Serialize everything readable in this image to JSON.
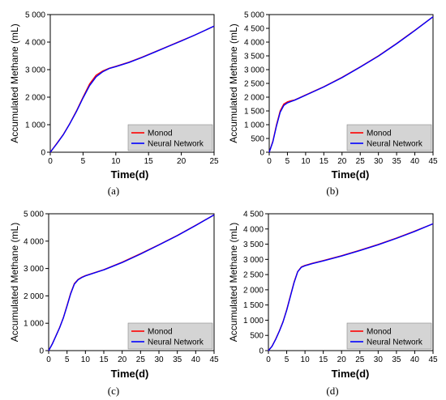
{
  "figure": {
    "panels": [
      "a",
      "b",
      "c",
      "d"
    ]
  },
  "colors": {
    "monod": "#ff0000",
    "neural_network": "#0000ff",
    "legend_background": "#d4d4d4",
    "axis": "#000000"
  },
  "chart_data": [
    {
      "type": "line",
      "panel": "a",
      "caption": "(a)",
      "xlabel": "Time(d)",
      "ylabel": "Accumulated Methane (mL)",
      "xlim": [
        0,
        25
      ],
      "ylim": [
        0,
        5000
      ],
      "x_ticks": [
        "0",
        "5",
        "10",
        "15",
        "20",
        "25"
      ],
      "y_ticks": [
        "0",
        "1 000",
        "2 000",
        "3 000",
        "4 000",
        "5 000"
      ],
      "legend": [
        "Monod",
        "Neural Network"
      ],
      "legend_position": "bottom-right",
      "series": [
        {
          "name": "Monod",
          "color": "#ff0000",
          "x": [
            0,
            1,
            2,
            3,
            4,
            5,
            6,
            7,
            8,
            9,
            10,
            12,
            14,
            16,
            18,
            20,
            22,
            25
          ],
          "y": [
            0,
            320,
            650,
            1050,
            1500,
            2000,
            2480,
            2800,
            2950,
            3050,
            3120,
            3270,
            3450,
            3650,
            3850,
            4050,
            4250,
            4580
          ]
        },
        {
          "name": "Neural Network",
          "color": "#0000ff",
          "x": [
            0,
            1,
            2,
            3,
            4,
            5,
            6,
            7,
            8,
            9,
            10,
            12,
            14,
            16,
            18,
            20,
            22,
            25
          ],
          "y": [
            0,
            310,
            640,
            1040,
            1480,
            1970,
            2420,
            2740,
            2920,
            3040,
            3110,
            3260,
            3440,
            3640,
            3840,
            4040,
            4250,
            4580
          ]
        }
      ]
    },
    {
      "type": "line",
      "panel": "b",
      "caption": "(b)",
      "xlabel": "Time(d)",
      "ylabel": "Accumulated Methane (mL)",
      "xlim": [
        0,
        45
      ],
      "ylim": [
        0,
        5000
      ],
      "x_ticks": [
        "0",
        "5",
        "10",
        "15",
        "20",
        "25",
        "30",
        "35",
        "40",
        "45"
      ],
      "y_ticks": [
        "0",
        "500",
        "1 000",
        "1 500",
        "2 000",
        "2 500",
        "3 000",
        "3 500",
        "4 000",
        "4 500",
        "5 000"
      ],
      "legend": [
        "Monod",
        "Neural Network"
      ],
      "legend_position": "bottom-right",
      "series": [
        {
          "name": "Monod",
          "color": "#ff0000",
          "x": [
            0,
            1,
            2,
            3,
            4,
            5,
            6,
            7,
            8,
            10,
            15,
            20,
            25,
            30,
            35,
            40,
            45
          ],
          "y": [
            0,
            400,
            1000,
            1500,
            1750,
            1830,
            1870,
            1900,
            1960,
            2080,
            2380,
            2720,
            3100,
            3500,
            3950,
            4430,
            4920
          ]
        },
        {
          "name": "Neural Network",
          "color": "#0000ff",
          "x": [
            0,
            1,
            2,
            3,
            4,
            5,
            6,
            7,
            8,
            10,
            15,
            20,
            25,
            30,
            35,
            40,
            45
          ],
          "y": [
            0,
            380,
            960,
            1450,
            1700,
            1790,
            1840,
            1890,
            1950,
            2070,
            2370,
            2710,
            3090,
            3490,
            3940,
            4420,
            4920
          ]
        }
      ]
    },
    {
      "type": "line",
      "panel": "c",
      "caption": "(c)",
      "xlabel": "Time(d)",
      "ylabel": "Accumulated Methane (mL)",
      "xlim": [
        0,
        45
      ],
      "ylim": [
        0,
        5000
      ],
      "x_ticks": [
        "0",
        "5",
        "10",
        "15",
        "20",
        "25",
        "30",
        "35",
        "40",
        "45"
      ],
      "y_ticks": [
        "0",
        "1 000",
        "2 000",
        "3 000",
        "4 000",
        "5 000"
      ],
      "legend": [
        "Monod",
        "Neural Network"
      ],
      "legend_position": "bottom-right",
      "series": [
        {
          "name": "Monod",
          "color": "#ff0000",
          "x": [
            0,
            1,
            2,
            3,
            4,
            5,
            6,
            7,
            8,
            9,
            10,
            15,
            20,
            25,
            30,
            35,
            40,
            45
          ],
          "y": [
            0,
            250,
            550,
            850,
            1200,
            1650,
            2100,
            2450,
            2600,
            2680,
            2740,
            2960,
            3230,
            3540,
            3870,
            4210,
            4580,
            4960
          ]
        },
        {
          "name": "Neural Network",
          "color": "#0000ff",
          "x": [
            0,
            1,
            2,
            3,
            4,
            5,
            6,
            7,
            8,
            9,
            10,
            15,
            20,
            25,
            30,
            35,
            40,
            45
          ],
          "y": [
            0,
            240,
            540,
            840,
            1190,
            1630,
            2080,
            2430,
            2590,
            2670,
            2730,
            2950,
            3220,
            3530,
            3860,
            4200,
            4570,
            4960
          ]
        }
      ]
    },
    {
      "type": "line",
      "panel": "d",
      "caption": "(d)",
      "xlabel": "Time(d)",
      "ylabel": "Accumulated Methane (mL)",
      "xlim": [
        0,
        45
      ],
      "ylim": [
        0,
        4500
      ],
      "x_ticks": [
        "0",
        "5",
        "10",
        "15",
        "20",
        "25",
        "30",
        "35",
        "40",
        "45"
      ],
      "y_ticks": [
        "0",
        "500",
        "1 000",
        "1 500",
        "2 000",
        "2 500",
        "3 000",
        "3 500",
        "4 000",
        "4 500"
      ],
      "legend": [
        "Monod",
        "Neural Network"
      ],
      "legend_position": "bottom-right",
      "series": [
        {
          "name": "Monod",
          "color": "#ff0000",
          "x": [
            0,
            1,
            2,
            3,
            4,
            5,
            6,
            7,
            8,
            9,
            10,
            12,
            15,
            20,
            25,
            30,
            35,
            40,
            45
          ],
          "y": [
            0,
            150,
            380,
            650,
            950,
            1350,
            1800,
            2250,
            2600,
            2750,
            2800,
            2870,
            2960,
            3120,
            3300,
            3490,
            3700,
            3930,
            4170
          ]
        },
        {
          "name": "Neural Network",
          "color": "#0000ff",
          "x": [
            0,
            1,
            2,
            3,
            4,
            5,
            6,
            7,
            8,
            9,
            10,
            12,
            15,
            20,
            25,
            30,
            35,
            40,
            45
          ],
          "y": [
            0,
            140,
            370,
            640,
            940,
            1330,
            1780,
            2230,
            2590,
            2740,
            2790,
            2860,
            2950,
            3110,
            3290,
            3480,
            3690,
            3920,
            4170
          ]
        }
      ]
    }
  ]
}
